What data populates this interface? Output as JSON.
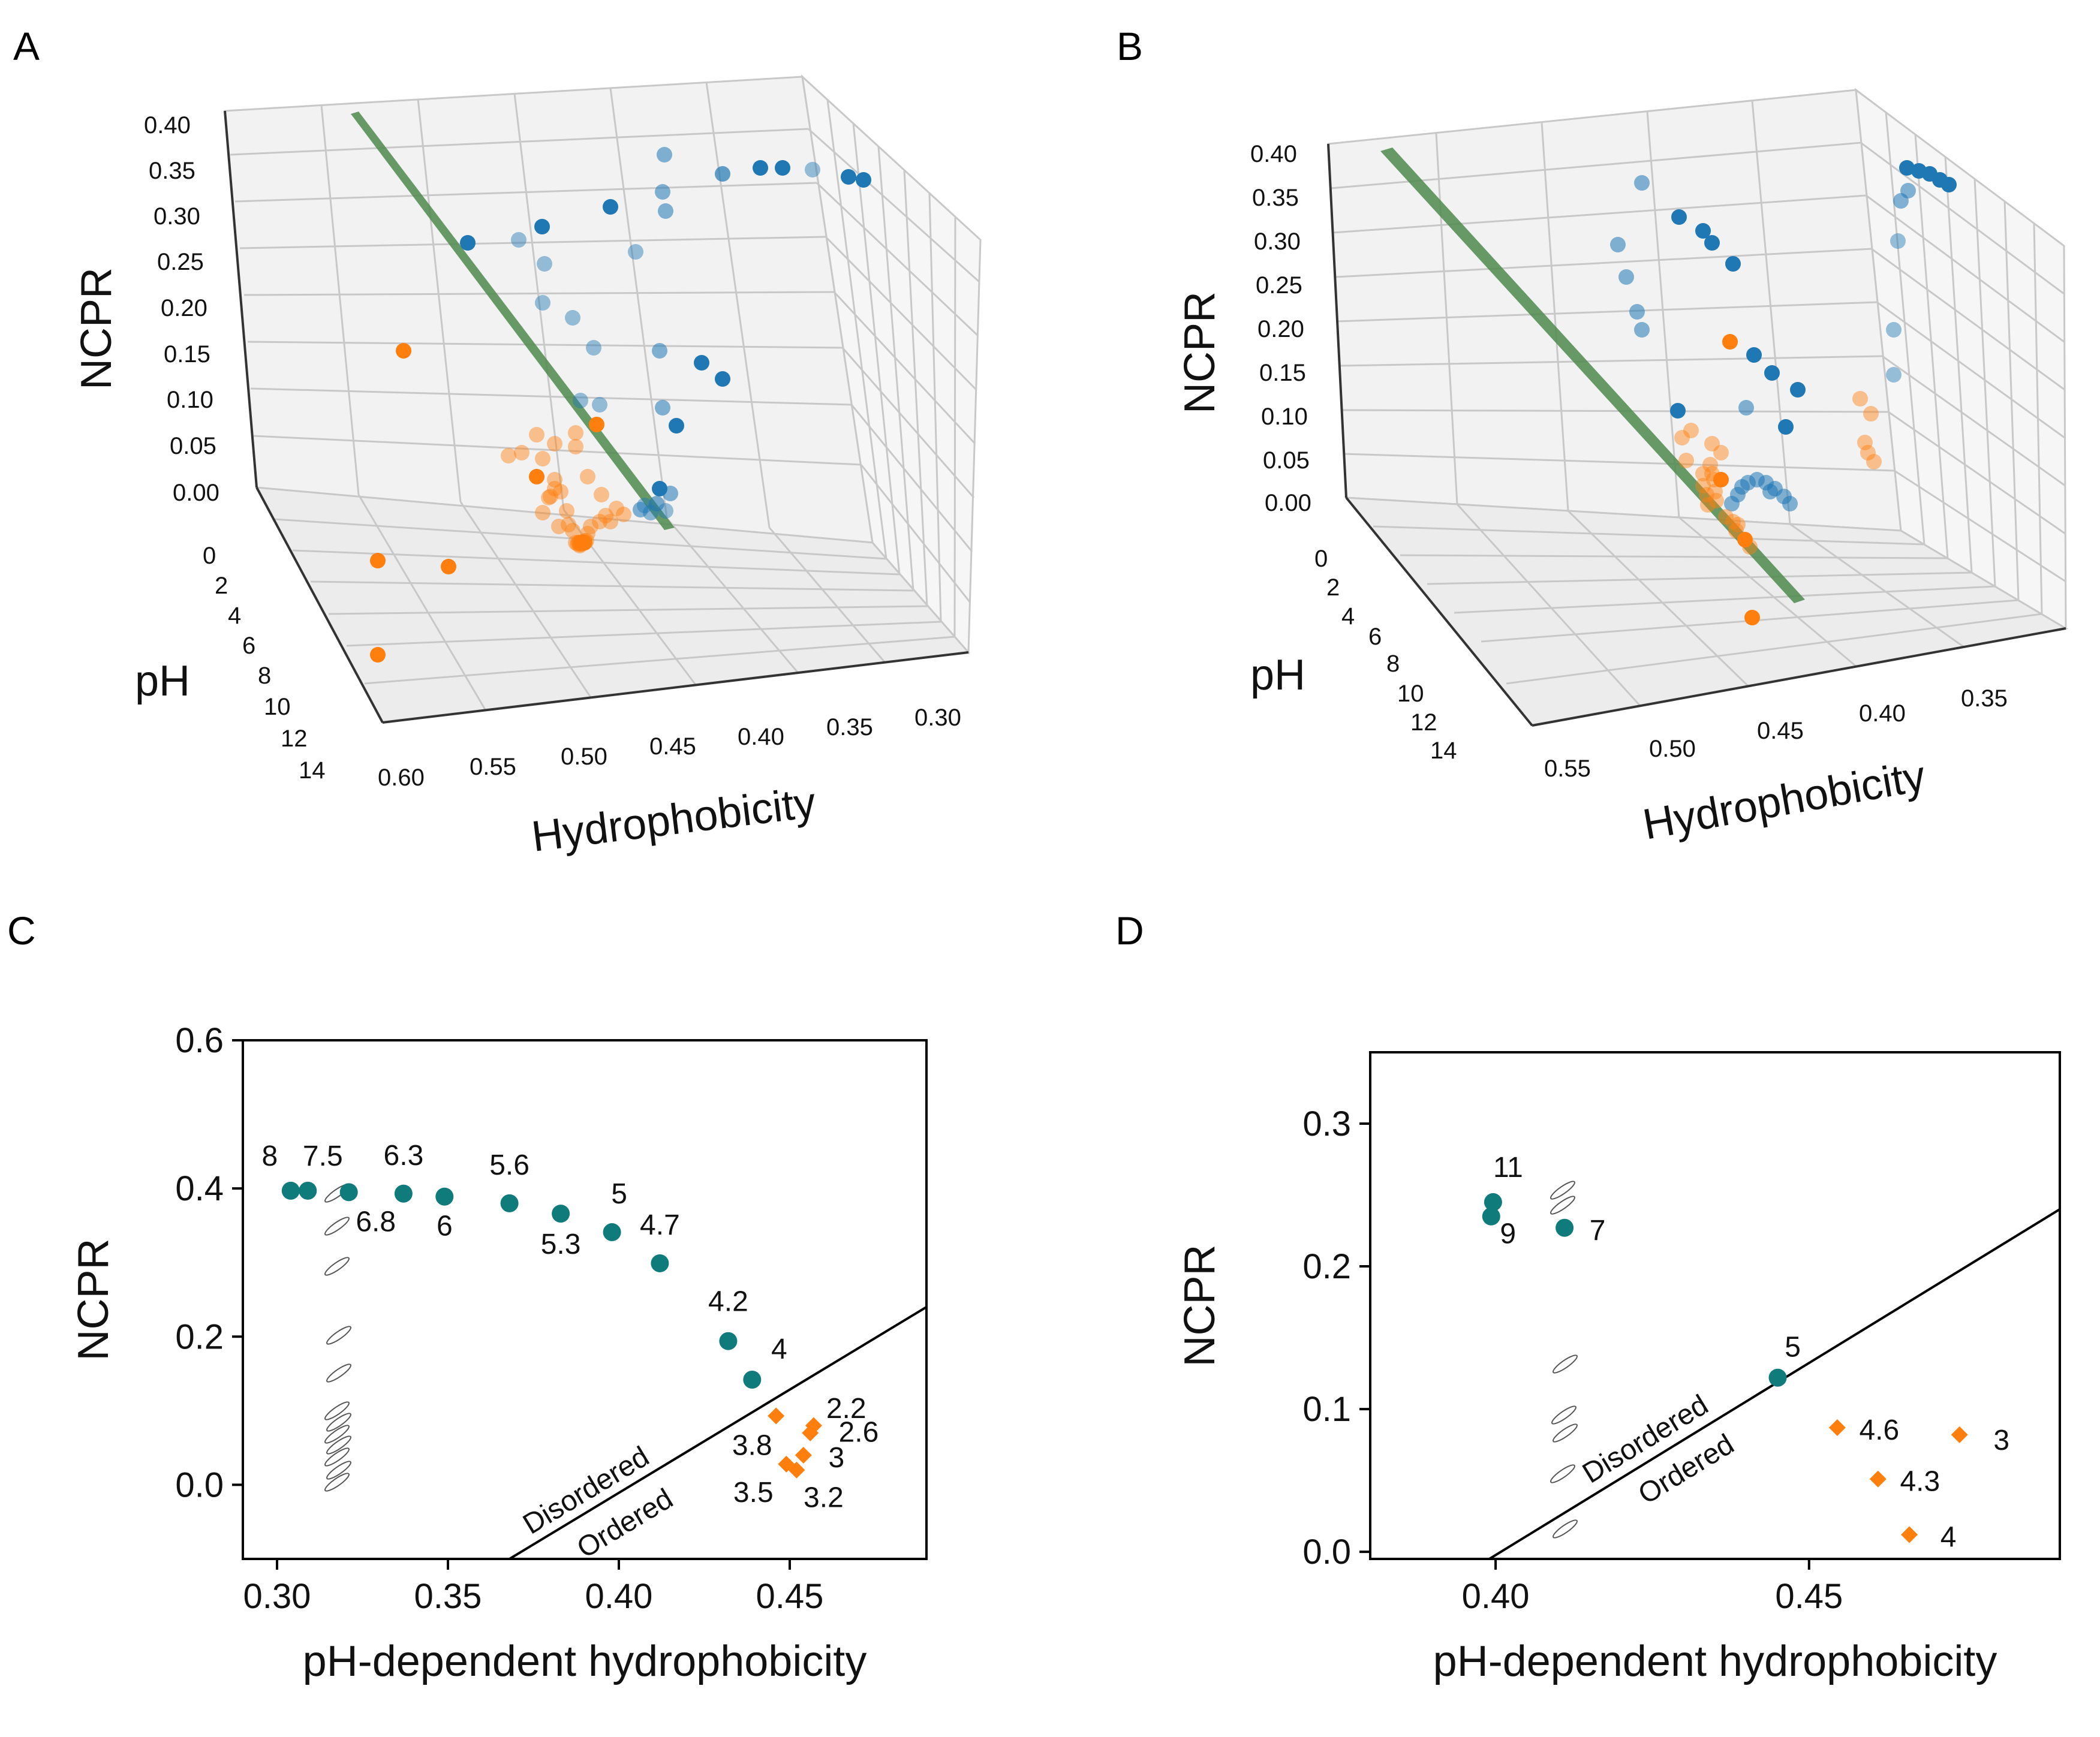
{
  "panels": {
    "A": {
      "letter": "A",
      "type": "3d-scatter",
      "x_label": "Hydrophobicity",
      "y_label": "pH",
      "z_label": "NCPR",
      "x_ticks": [
        "0.60",
        "0.55",
        "0.50",
        "0.45",
        "0.40",
        "0.35",
        "0.30"
      ],
      "y_ticks": [
        "0",
        "2",
        "4",
        "6",
        "8",
        "10",
        "12",
        "14"
      ],
      "z_ticks": [
        "0.00",
        "0.05",
        "0.10",
        "0.15",
        "0.20",
        "0.25",
        "0.30",
        "0.35",
        "0.40"
      ],
      "colors": {
        "disordered": "#1f77b4",
        "ordered": "#ff7f0e",
        "plane": "#4e8a4e",
        "grid": "#c8c8c8"
      }
    },
    "B": {
      "letter": "B",
      "type": "3d-scatter",
      "x_label": "Hydrophobicity",
      "y_label": "pH",
      "z_label": "NCPR",
      "x_ticks": [
        "0.55",
        "0.50",
        "0.45",
        "0.40",
        "0.35"
      ],
      "y_ticks": [
        "0",
        "2",
        "4",
        "6",
        "8",
        "10",
        "12",
        "14"
      ],
      "z_ticks": [
        "0.00",
        "0.05",
        "0.10",
        "0.15",
        "0.20",
        "0.25",
        "0.30",
        "0.35",
        "0.40"
      ],
      "colors": {
        "disordered": "#1f77b4",
        "ordered": "#ff7f0e",
        "plane": "#4e8a4e",
        "grid": "#c8c8c8"
      }
    }
  },
  "chart_data": [
    {
      "panel": "C",
      "type": "scatter",
      "xlabel": "pH-dependent hydrophobicity",
      "ylabel": "NCPR",
      "xlim": [
        0.29,
        0.49
      ],
      "ylim": [
        -0.1,
        0.6
      ],
      "xticks": [
        "0.30",
        "0.35",
        "0.40",
        "0.45"
      ],
      "yticks": [
        "0.0",
        "0.2",
        "0.4",
        "0.6"
      ],
      "boundary_line": {
        "x": [
          0.368,
          0.49
        ],
        "y": [
          -0.1,
          0.24
        ]
      },
      "region_labels": {
        "upper": "Disordered",
        "lower": "Ordered"
      },
      "series": [
        {
          "name": "Disordered",
          "color": "#0f7b7b",
          "marker": "circle",
          "points": [
            {
              "x": 0.304,
              "y": 0.397,
              "label": "8"
            },
            {
              "x": 0.309,
              "y": 0.397,
              "label": "7.5"
            },
            {
              "x": 0.321,
              "y": 0.395,
              "label": "6.8"
            },
            {
              "x": 0.337,
              "y": 0.393,
              "label": "6.3"
            },
            {
              "x": 0.349,
              "y": 0.389,
              "label": "6"
            },
            {
              "x": 0.368,
              "y": 0.38,
              "label": "5.6"
            },
            {
              "x": 0.383,
              "y": 0.366,
              "label": "5.3"
            },
            {
              "x": 0.398,
              "y": 0.341,
              "label": "5"
            },
            {
              "x": 0.412,
              "y": 0.299,
              "label": "4.7"
            },
            {
              "x": 0.432,
              "y": 0.194,
              "label": "4.2"
            },
            {
              "x": 0.439,
              "y": 0.142,
              "label": "4"
            }
          ]
        },
        {
          "name": "Ordered",
          "color": "#ff7f0e",
          "marker": "diamond",
          "points": [
            {
              "x": 0.446,
              "y": 0.093,
              "label": "3.8"
            },
            {
              "x": 0.456,
              "y": 0.07,
              "label": "2.2"
            },
            {
              "x": 0.457,
              "y": 0.08,
              "label": "2.6"
            },
            {
              "x": 0.454,
              "y": 0.04,
              "label": "3"
            },
            {
              "x": 0.452,
              "y": 0.02,
              "label": "3.2"
            },
            {
              "x": 0.449,
              "y": 0.028,
              "label": "3.5"
            }
          ]
        }
      ]
    },
    {
      "panel": "D",
      "type": "scatter",
      "xlabel": "pH-dependent hydrophobicity",
      "ylabel": "NCPR",
      "xlim": [
        0.38,
        0.49
      ],
      "ylim": [
        -0.005,
        0.35
      ],
      "xticks": [
        "0.40",
        "0.45"
      ],
      "yticks": [
        "0.0",
        "0.1",
        "0.2",
        "0.3"
      ],
      "boundary_line": {
        "x": [
          0.399,
          0.49
        ],
        "y": [
          -0.005,
          0.24
        ]
      },
      "region_labels": {
        "upper": "Disordered",
        "lower": "Ordered"
      },
      "series": [
        {
          "name": "Disordered",
          "color": "#0f7b7b",
          "marker": "circle",
          "points": [
            {
              "x": 0.3996,
              "y": 0.245,
              "label": "11"
            },
            {
              "x": 0.3993,
              "y": 0.235,
              "label": "9"
            },
            {
              "x": 0.411,
              "y": 0.227,
              "label": "7"
            },
            {
              "x": 0.445,
              "y": 0.122,
              "label": "5"
            }
          ]
        },
        {
          "name": "Ordered",
          "color": "#ff7f0e",
          "marker": "diamond",
          "points": [
            {
              "x": 0.4545,
              "y": 0.087,
              "label": "4.6"
            },
            {
              "x": 0.474,
              "y": 0.082,
              "label": "3"
            },
            {
              "x": 0.461,
              "y": 0.051,
              "label": "4.3"
            },
            {
              "x": 0.466,
              "y": 0.012,
              "label": "4"
            }
          ]
        }
      ]
    }
  ],
  "panel_letters": {
    "C": "C",
    "D": "D"
  }
}
